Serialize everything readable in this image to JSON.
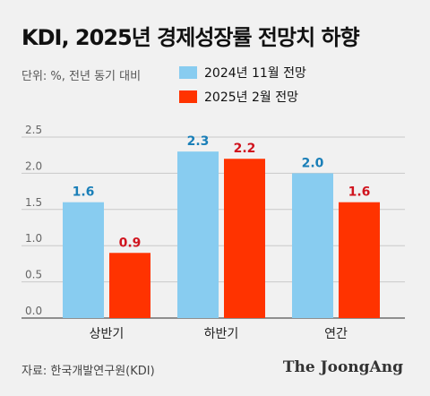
{
  "title": "KDI, 2025년 경제성장률 전망치 하향",
  "unit_label": "단위: %, 전년 동기 대비",
  "source": "자료: 한국개발연구원(KDI)",
  "brand": "The JoongAng",
  "chart_data": {
    "type": "bar",
    "categories": [
      "상반기",
      "하반기",
      "연간"
    ],
    "series": [
      {
        "name": "2024년 11월 전망",
        "values": [
          1.6,
          2.3,
          2.0
        ],
        "color": "#88ccf0",
        "label_color": "#1a7fb8"
      },
      {
        "name": "2025년 2월 전망",
        "values": [
          0.9,
          2.2,
          1.6
        ],
        "color": "#ff3300",
        "label_color": "#d0141e"
      }
    ],
    "ylim": [
      0,
      2.5
    ],
    "yticks": [
      "0.0",
      "0.5",
      "1.0",
      "1.5",
      "2.0",
      "2.5"
    ],
    "grid": true,
    "legend": "top"
  }
}
